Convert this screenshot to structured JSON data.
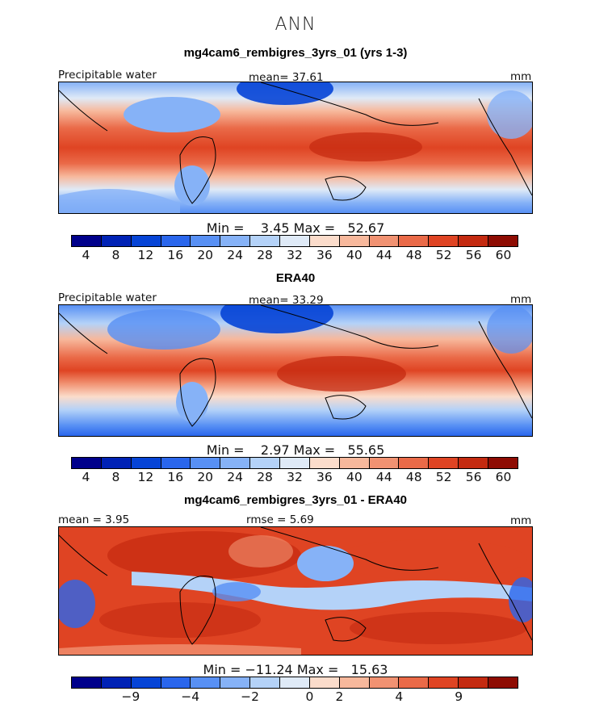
{
  "page_title": "ANN",
  "chart_data": [
    {
      "type": "heatmap",
      "title": "mg4cam6_rembigres_3yrs_01 (yrs 1-3)",
      "left_label": "Precipitable water",
      "center_label": "mean=  37.61",
      "mean": 37.61,
      "units": "mm",
      "minmax_text": "Min =    3.45 Max =   52.67",
      "min": 3.45,
      "max": 52.67,
      "colorbar": {
        "tick_labels": [
          "4",
          "8",
          "12",
          "16",
          "20",
          "24",
          "28",
          "32",
          "36",
          "40",
          "44",
          "48",
          "52",
          "56",
          "60"
        ],
        "colors": [
          "#00008b",
          "#0022b5",
          "#0644d6",
          "#2a66ec",
          "#5890f4",
          "#86b2f7",
          "#b4d2f8",
          "#dfeaf7",
          "#fbdccb",
          "#f7b89c",
          "#f19272",
          "#ea6a48",
          "#df4423",
          "#c42a10",
          "#8e0c03"
        ]
      }
    },
    {
      "type": "heatmap",
      "title": "ERA40",
      "left_label": "Precipitable water",
      "center_label": "mean=  33.29",
      "mean": 33.29,
      "units": "mm",
      "minmax_text": "Min =    2.97 Max =   55.65",
      "min": 2.97,
      "max": 55.65,
      "colorbar": {
        "tick_labels": [
          "4",
          "8",
          "12",
          "16",
          "20",
          "24",
          "28",
          "32",
          "36",
          "40",
          "44",
          "48",
          "52",
          "56",
          "60"
        ],
        "colors": [
          "#00008b",
          "#0022b5",
          "#0644d6",
          "#2a66ec",
          "#5890f4",
          "#86b2f7",
          "#b4d2f8",
          "#dfeaf7",
          "#fbdccb",
          "#f7b89c",
          "#f19272",
          "#ea6a48",
          "#df4423",
          "#c42a10",
          "#8e0c03"
        ]
      }
    },
    {
      "type": "heatmap",
      "title": "mg4cam6_rembigres_3yrs_01 - ERA40",
      "left_label": "mean =     3.95",
      "center_label": "rmse =     5.69",
      "mean": 3.95,
      "rmse": 5.69,
      "units": "mm",
      "minmax_text": "Min = −11.24 Max =   15.63",
      "min": -11.24,
      "max": 15.63,
      "colorbar": {
        "tick_labels": [
          "−9",
          "−4",
          "−2",
          "0",
          "2",
          "4",
          "9"
        ],
        "colors": [
          "#00008b",
          "#0022b5",
          "#0644d6",
          "#2a66ec",
          "#5890f4",
          "#86b2f7",
          "#b4d2f8",
          "#dfeaf7",
          "#fbdccb",
          "#f7b89c",
          "#f19272",
          "#ea6a48",
          "#df4423",
          "#c42a10",
          "#8e0c03"
        ]
      }
    }
  ]
}
